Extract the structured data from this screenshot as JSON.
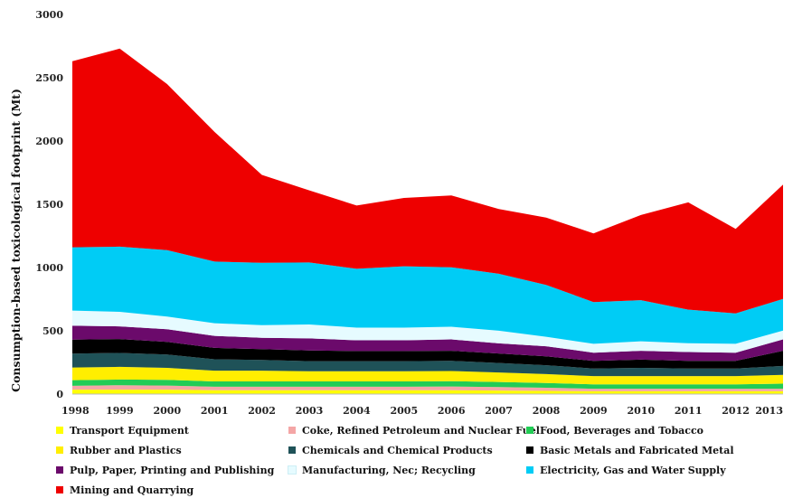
{
  "chart_data": {
    "type": "area",
    "stacked": true,
    "ylabel": "Consumption-based toxicological footprint (Mt)",
    "xlabel": "",
    "ylim": [
      0,
      3000
    ],
    "yticks": [
      "0",
      "500",
      "1000",
      "1500",
      "2000",
      "2500",
      "3000"
    ],
    "categories": [
      "1998",
      "1999",
      "2000",
      "2001",
      "2002",
      "2003",
      "2004",
      "2005",
      "2006",
      "2007",
      "2008",
      "2009",
      "2010",
      "2011",
      "2012",
      "2013"
    ],
    "legend_position": "bottom",
    "series": [
      {
        "name": "Transport Equipment",
        "color": "#FFFF00",
        "values": [
          35,
          35,
          35,
          30,
          30,
          30,
          30,
          30,
          30,
          28,
          25,
          22,
          22,
          22,
          22,
          22
        ]
      },
      {
        "name": "Coke, Refined Petroleum and Nuclear Fuel",
        "color": "#F4A6A6",
        "values": [
          30,
          35,
          32,
          28,
          28,
          28,
          28,
          28,
          30,
          28,
          25,
          20,
          20,
          20,
          20,
          20
        ]
      },
      {
        "name": "Food, Beverages and Tobacco",
        "color": "#22CC55",
        "values": [
          45,
          45,
          45,
          42,
          42,
          42,
          42,
          42,
          42,
          40,
          38,
          35,
          35,
          35,
          35,
          40
        ]
      },
      {
        "name": "Rubber and Plastics",
        "color": "#FFEE00",
        "values": [
          100,
          100,
          95,
          85,
          85,
          80,
          80,
          80,
          80,
          75,
          70,
          65,
          65,
          65,
          65,
          70
        ]
      },
      {
        "name": "Chemicals and Chemical Products",
        "color": "#1F5258",
        "values": [
          110,
          110,
          105,
          90,
          85,
          80,
          80,
          80,
          80,
          75,
          70,
          60,
          65,
          60,
          60,
          70
        ]
      },
      {
        "name": "Basic Metals and Fabricated Metal",
        "color": "#000000",
        "values": [
          110,
          110,
          100,
          90,
          85,
          85,
          80,
          80,
          80,
          75,
          70,
          60,
          65,
          60,
          60,
          120
        ]
      },
      {
        "name": "Pulp, Paper, Printing and Publishing",
        "color": "#6B0A6B",
        "values": [
          110,
          100,
          100,
          95,
          90,
          95,
          85,
          85,
          90,
          80,
          80,
          65,
          70,
          70,
          65,
          90
        ]
      },
      {
        "name": "Manufacturing, Nec; Recycling",
        "color": "#E6FBFF",
        "values": [
          120,
          115,
          100,
          100,
          100,
          110,
          100,
          100,
          100,
          100,
          75,
          70,
          75,
          70,
          70,
          70
        ]
      },
      {
        "name": "Electricity, Gas and Water Supply",
        "color": "#00CCF5",
        "values": [
          500,
          515,
          525,
          487,
          492,
          490,
          465,
          485,
          470,
          450,
          410,
          330,
          325,
          265,
          240,
          250
        ]
      },
      {
        "name": "Mining and Quarrying",
        "color": "#EE0000",
        "values": [
          1470,
          1565,
          1313,
          1025,
          695,
          570,
          500,
          540,
          568,
          512,
          532,
          543,
          673,
          848,
          668,
          903
        ]
      }
    ]
  }
}
